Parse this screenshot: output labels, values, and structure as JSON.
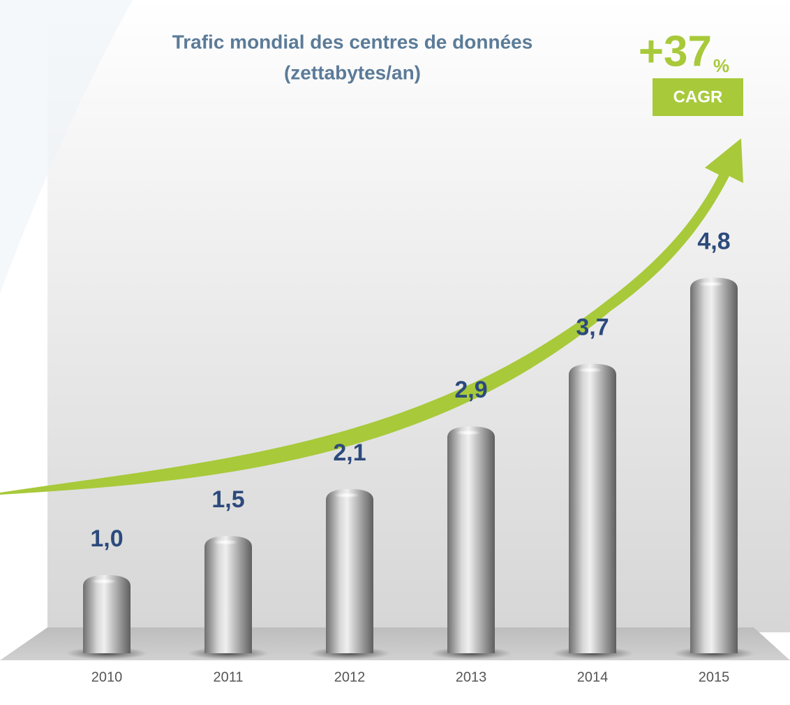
{
  "chart_data": {
    "type": "bar",
    "title": "Trafic mondial des centres de données",
    "subtitle": "(zettabytes/an)",
    "categories": [
      "2010",
      "2011",
      "2012",
      "2013",
      "2014",
      "2015"
    ],
    "values": [
      1.0,
      1.5,
      2.1,
      2.9,
      3.7,
      4.8
    ],
    "value_labels": [
      "1,0",
      "1,5",
      "2,1",
      "2,9",
      "3,7",
      "4,8"
    ],
    "color": "#9a9a9a",
    "annotation": {
      "value": "+37",
      "unit": "%",
      "label": "CAGR",
      "color": "#a8c93a"
    }
  }
}
